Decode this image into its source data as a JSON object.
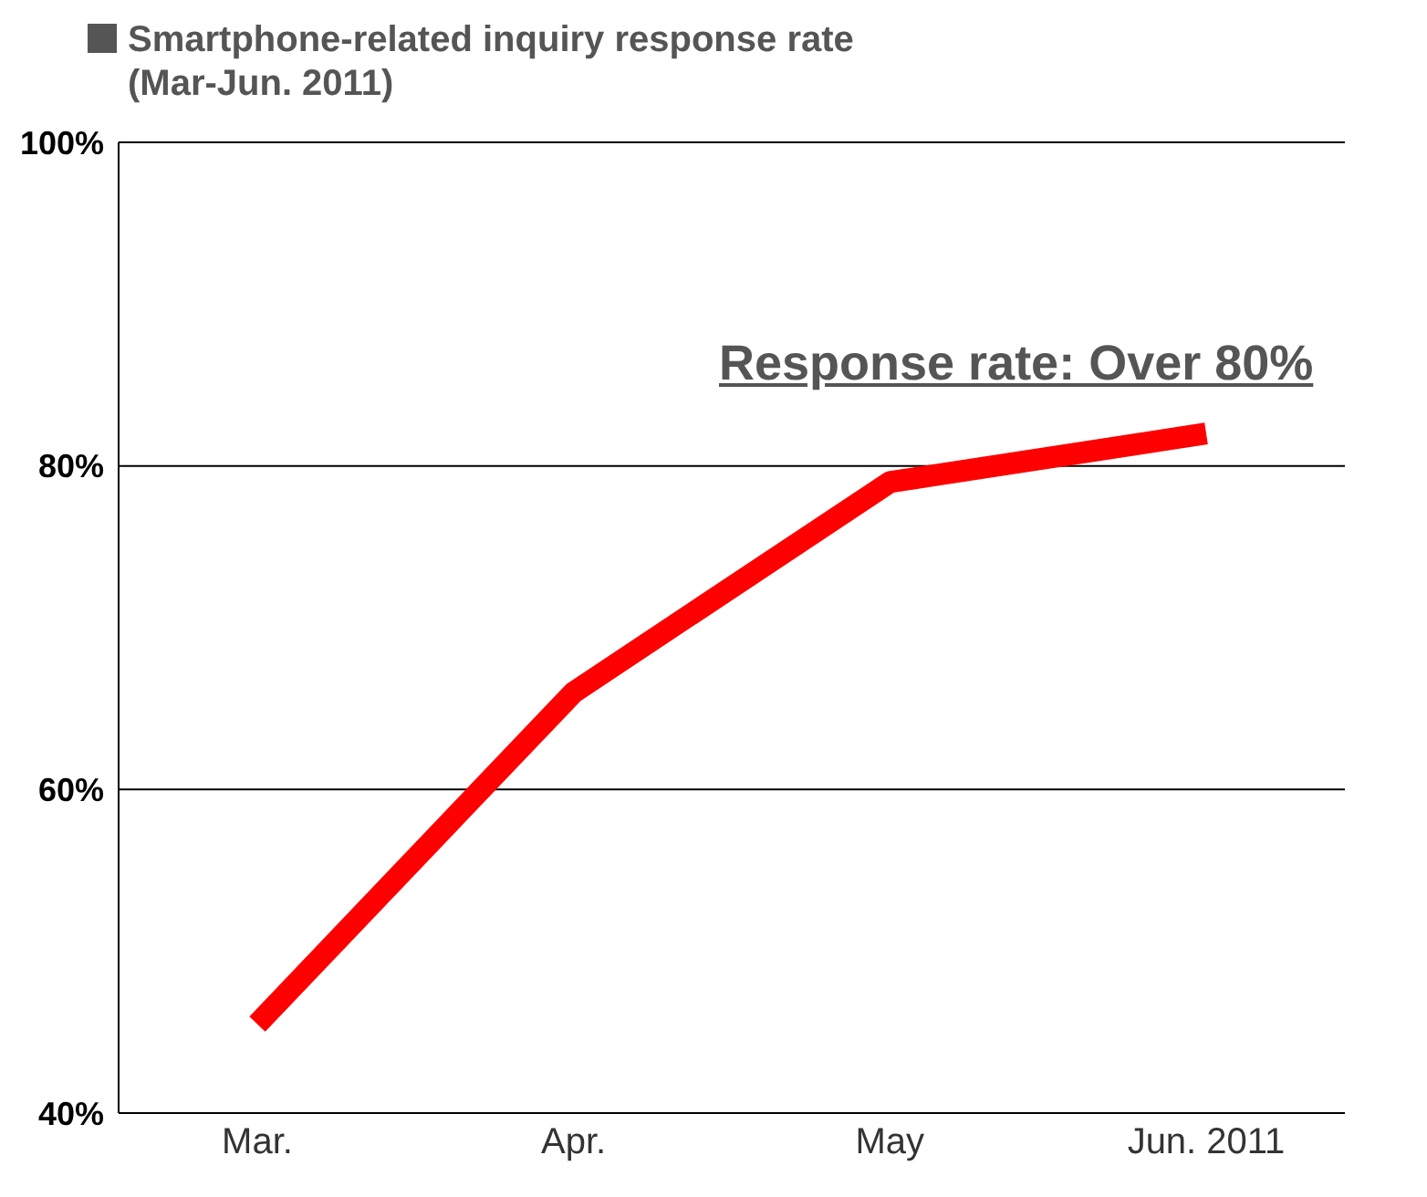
{
  "chart_data": {
    "type": "line",
    "title": "Smartphone-related inquiry response rate\n(Mar-Jun. 2011)",
    "categories": [
      "Mar.",
      "Apr.",
      "May",
      "Jun. 2011"
    ],
    "series": [
      {
        "color": "#ff0000",
        "values": [
          45.5,
          66,
          79,
          82
        ]
      }
    ],
    "ylim": [
      40,
      100
    ],
    "yticks": [
      {
        "value": 40,
        "label": "40%"
      },
      {
        "value": 60,
        "label": "60%"
      },
      {
        "value": 80,
        "label": "80%"
      },
      {
        "value": 100,
        "label": "100%"
      }
    ],
    "grid": "y",
    "marker": "none",
    "line_style": "solid",
    "annotations": [
      "Response rate: Over 80%"
    ]
  }
}
